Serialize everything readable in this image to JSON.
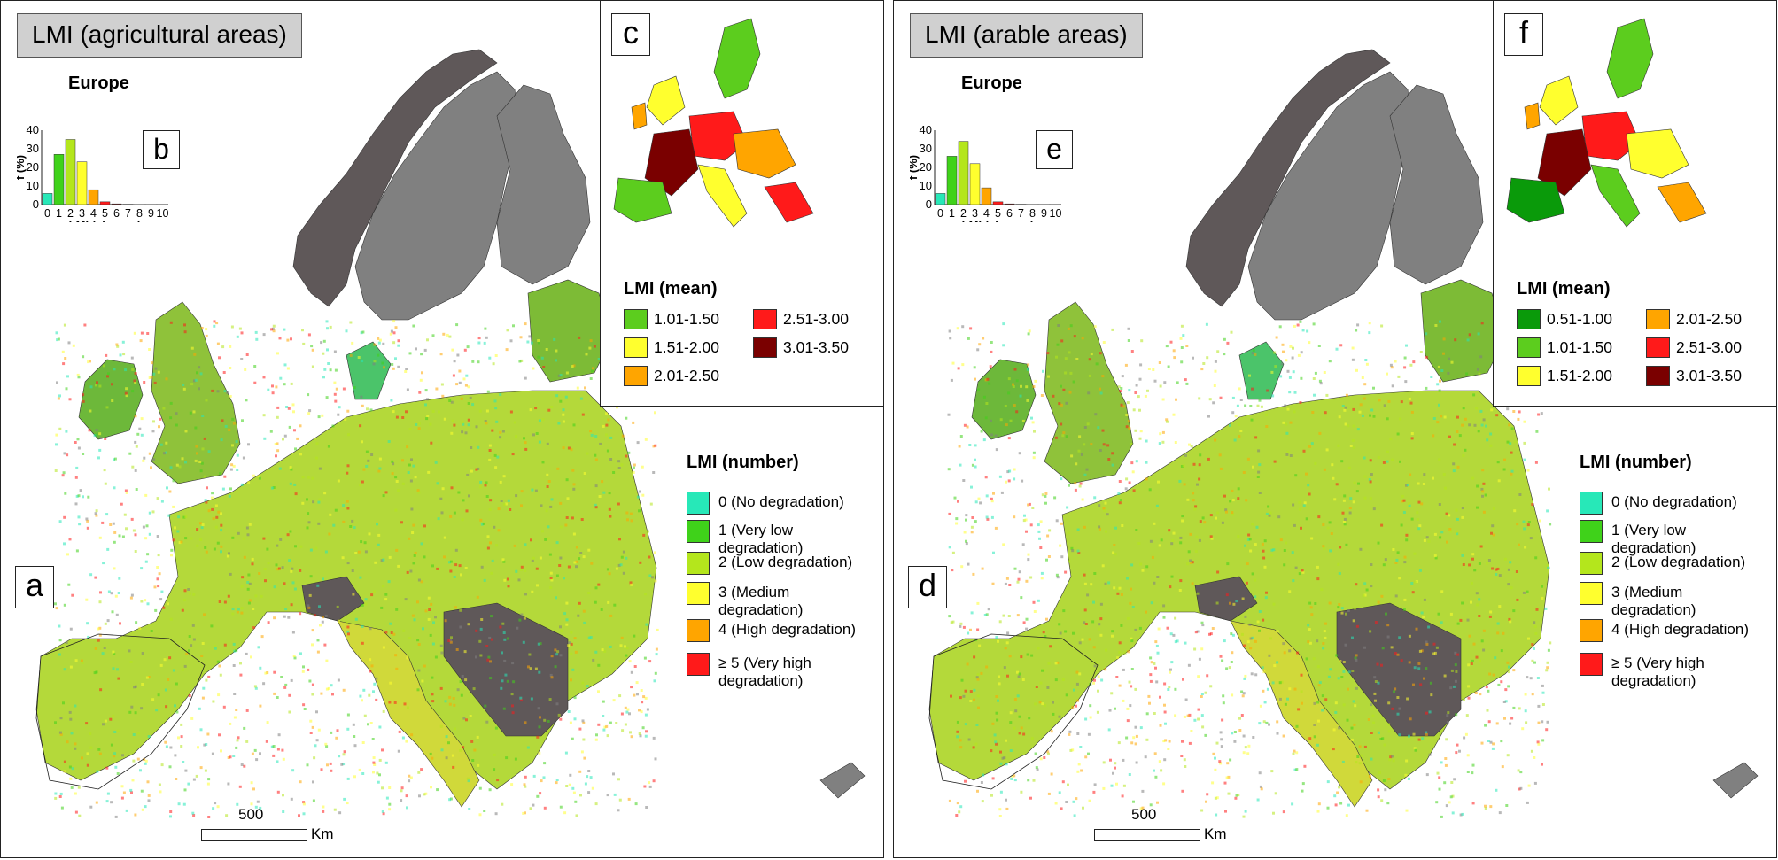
{
  "panels": [
    {
      "title": "LMI (agricultural areas)",
      "map_letter": "a",
      "hist_letter": "b",
      "inset_letter": "c",
      "hist": {
        "title": "Europe",
        "ylabel": "f (%)",
        "xlabel": "LMI (classes)",
        "yticks": [
          "0",
          "10",
          "20",
          "30",
          "40"
        ],
        "xticks": [
          "0",
          "1",
          "2",
          "3",
          "4",
          "5",
          "6",
          "7",
          "8",
          "9",
          "10"
        ],
        "values": [
          6,
          27,
          35,
          23,
          8,
          1.5,
          0.4,
          0.2,
          0.1,
          0.1,
          0.1
        ]
      },
      "inset_legend": {
        "title": "LMI (mean)",
        "items": [
          {
            "label": "1.01-1.50",
            "color": "#5ccd1e"
          },
          {
            "label": "1.51-2.00",
            "color": "#ffff2e"
          },
          {
            "label": "2.01-2.50",
            "color": "#ffa500"
          },
          {
            "label": "2.51-3.00",
            "color": "#ff1a1a"
          },
          {
            "label": "3.01-3.50",
            "color": "#7a0000"
          }
        ]
      },
      "scale": {
        "number": "500",
        "unit": "Km"
      }
    },
    {
      "title": "LMI (arable areas)",
      "map_letter": "d",
      "hist_letter": "e",
      "inset_letter": "f",
      "hist": {
        "title": "Europe",
        "ylabel": "f (%)",
        "xlabel": "LMI (classes)",
        "yticks": [
          "0",
          "10",
          "20",
          "30",
          "40"
        ],
        "xticks": [
          "0",
          "1",
          "2",
          "3",
          "4",
          "5",
          "6",
          "7",
          "8",
          "9",
          "10"
        ],
        "values": [
          6,
          26,
          34,
          22,
          9,
          1.5,
          0.4,
          0.2,
          0.1,
          0.1,
          0.1
        ]
      },
      "inset_legend": {
        "title": "LMI (mean)",
        "items": [
          {
            "label": "0.51-1.00",
            "color": "#0a9a0a"
          },
          {
            "label": "1.01-1.50",
            "color": "#5ccd1e"
          },
          {
            "label": "1.51-2.00",
            "color": "#ffff2e"
          },
          {
            "label": "2.01-2.50",
            "color": "#ffa500"
          },
          {
            "label": "2.51-3.00",
            "color": "#ff1a1a"
          },
          {
            "label": "3.01-3.50",
            "color": "#7a0000"
          }
        ]
      },
      "scale": {
        "number": "500",
        "unit": "Km"
      }
    }
  ],
  "number_legend": {
    "title": "LMI (number)",
    "items": [
      {
        "label": "0 (No degradation)",
        "color": "#27e8b8"
      },
      {
        "label": "1 (Very low degradation)",
        "color": "#3fd21a"
      },
      {
        "label": "2 (Low degradation)",
        "color": "#b4e61c"
      },
      {
        "label": "3 (Medium degradation)",
        "color": "#ffff2e"
      },
      {
        "label": "4 (High degradation)",
        "color": "#ffa500"
      },
      {
        "label": "≥ 5 (Very high degradation)",
        "color": "#ff1a1a"
      }
    ]
  },
  "map_colors": {
    "no_data_country": "#5f5859",
    "non_agricultural": "#808080",
    "sea": "#ffffff"
  }
}
